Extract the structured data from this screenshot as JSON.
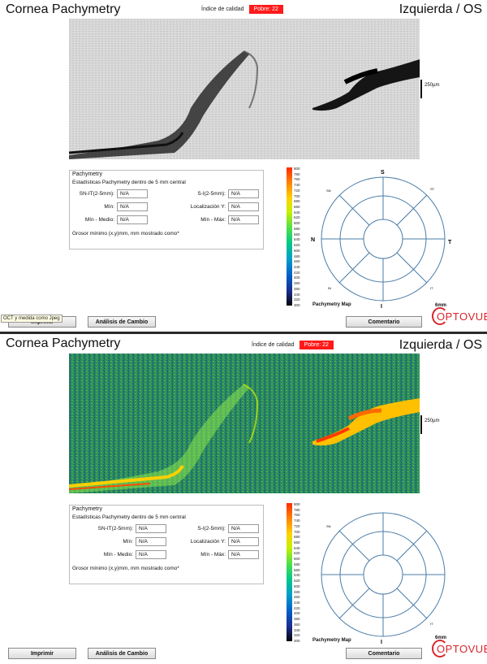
{
  "panels": [
    {
      "title": "Cornea Pachymetry",
      "quality_label": "Índice de calidad",
      "quality_value": "Pobre: 22",
      "eye": "Izquierda / OS",
      "scale_label": "250µm",
      "scan_style": "grayscale",
      "pachymetry": {
        "heading": "Pachymetry",
        "subheading": "Estadísticas Pachymetry dentro de 5 mm central",
        "fields": [
          {
            "label": "SN-IT(2-5mm):",
            "value": "N/A"
          },
          {
            "label": "S-I(2-5mm):",
            "value": "N/A"
          },
          {
            "label": "Mín:",
            "value": "N/A"
          },
          {
            "label": "Localización Y:",
            "value": "N/A"
          },
          {
            "label": "Mín - Medio:",
            "value": "N/A"
          },
          {
            "label": "Mín - Máx:",
            "value": "N/A"
          }
        ],
        "footer": "Grosor mínimo (x,y)mm, mm mostrado como*"
      },
      "colorbar_ticks": [
        "800",
        "780",
        "760",
        "740",
        "720",
        "700",
        "680",
        "660",
        "640",
        "620",
        "600",
        "580",
        "560",
        "540",
        "520",
        "500",
        "480",
        "460",
        "440",
        "420",
        "400",
        "380",
        "360",
        "340",
        "320",
        "300"
      ],
      "map": {
        "label": "Pachymetry Map",
        "S": "S",
        "I": "I",
        "N": "N",
        "T": "T",
        "SN": "SN",
        "ST": "ST",
        "IN": "IN",
        "IT": "IT"
      },
      "buttons": {
        "print": "Imprimir",
        "change": "Análisis de Cambio",
        "comment": "Comentario"
      },
      "logo": {
        "mm": "6mm",
        "brand": "OPTOVUE"
      },
      "tooltip": "OCT y medida como Jpeg"
    },
    {
      "title": "Cornea Pachymetry",
      "quality_label": "Índice de calidad",
      "quality_value": "Pobre: 22",
      "eye": "Izquierda / OS",
      "scale_label": "250µm",
      "scan_style": "color",
      "pachymetry": {
        "heading": "Pachymetry",
        "subheading": "Estadísticas Pachymetry dentro de 5 mm central",
        "fields": [
          {
            "label": "SN-IT(2-5mm):",
            "value": "N/A"
          },
          {
            "label": "S-I(2-5mm):",
            "value": "N/A"
          },
          {
            "label": "Mín:",
            "value": "N/A"
          },
          {
            "label": "Localización Y:",
            "value": "N/A"
          },
          {
            "label": "Mín - Medio:",
            "value": "N/A"
          },
          {
            "label": "Mín - Máx:",
            "value": "N/A"
          }
        ],
        "footer": "Grosor mínimo (x,y)mm, mm mostrado como*"
      },
      "colorbar_ticks": [
        "800",
        "780",
        "760",
        "740",
        "720",
        "700",
        "680",
        "660",
        "640",
        "620",
        "600",
        "580",
        "560",
        "540",
        "520",
        "500",
        "480",
        "460",
        "440",
        "420",
        "400",
        "380",
        "360",
        "340",
        "320",
        "300"
      ],
      "map": {
        "label": "Pachymetry Map",
        "S": "",
        "I": "I",
        "N": "",
        "T": "",
        "SN": "SN",
        "ST": "",
        "IN": "",
        "IT": "IT"
      },
      "buttons": {
        "print": "Imprimir",
        "change": "Análisis de Cambio",
        "comment": "Comentario"
      },
      "logo": {
        "mm": "6mm",
        "brand": "OPTOVUE"
      }
    }
  ],
  "colors": {
    "quality_badge": "#ff1a1a",
    "brand": "#d8262b"
  }
}
